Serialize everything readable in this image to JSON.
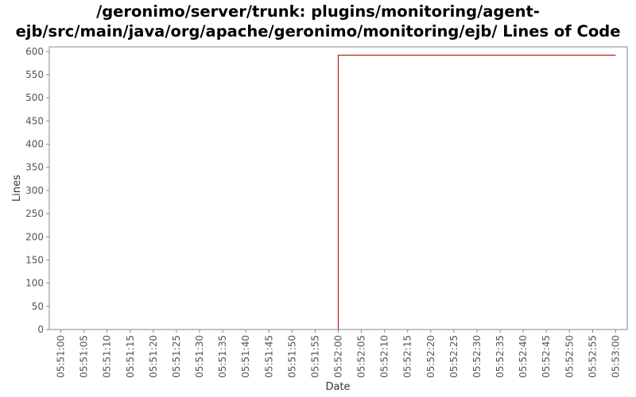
{
  "chart_data": {
    "type": "line",
    "title_lines": [
      "/geronimo/server/trunk: plugins/monitoring/agent-",
      "ejb/src/main/java/org/apache/geronimo/monitoring/ejb/ Lines of Code"
    ],
    "xlabel": "Date",
    "ylabel": "Lines",
    "ylim": [
      0,
      610
    ],
    "yticks": [
      0,
      50,
      100,
      150,
      200,
      250,
      300,
      350,
      400,
      450,
      500,
      550,
      600
    ],
    "xlim": [
      "05:50:57.5",
      "05:53:02.5"
    ],
    "xticks": [
      "05:51:00",
      "05:51:05",
      "05:51:10",
      "05:51:15",
      "05:51:20",
      "05:51:25",
      "05:51:30",
      "05:51:35",
      "05:51:40",
      "05:51:45",
      "05:51:50",
      "05:51:55",
      "05:52:00",
      "05:52:05",
      "05:52:10",
      "05:52:15",
      "05:52:20",
      "05:52:25",
      "05:52:30",
      "05:52:35",
      "05:52:40",
      "05:52:45",
      "05:52:50",
      "05:52:55",
      "05:53:00"
    ],
    "grid": false,
    "legend": "none",
    "series": [
      {
        "color": "#b22222",
        "x": [
          "05:52:00",
          "05:52:00",
          "05:53:00"
        ],
        "y": [
          0,
          592,
          592
        ]
      }
    ]
  }
}
